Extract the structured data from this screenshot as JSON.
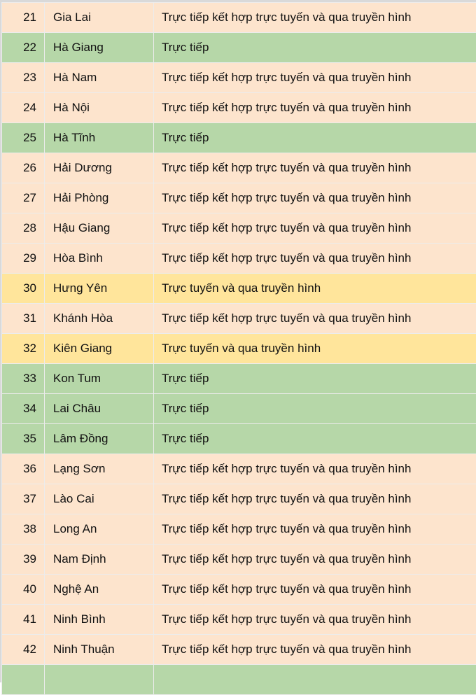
{
  "colors": {
    "peach": "#fde4cd",
    "green": "#b6d7a8",
    "yellow": "#ffe59b"
  },
  "rows": [
    {
      "no": "21",
      "province": "Gia Lai",
      "form": "Trực tiếp kết hợp trực tuyến và qua truyền hình",
      "color": "peach"
    },
    {
      "no": "22",
      "province": "Hà Giang",
      "form": "Trực tiếp",
      "color": "green"
    },
    {
      "no": "23",
      "province": "Hà Nam",
      "form": "Trực tiếp kết hợp trực tuyến và qua truyền hình",
      "color": "peach"
    },
    {
      "no": "24",
      "province": "Hà Nội",
      "form": "Trực tiếp kết hợp trực tuyến và qua truyền hình",
      "color": "peach"
    },
    {
      "no": "25",
      "province": "Hà Tĩnh",
      "form": "Trực tiếp",
      "color": "green"
    },
    {
      "no": "26",
      "province": "Hải Dương",
      "form": "Trực tiếp kết hợp trực tuyến và qua truyền hình",
      "color": "peach"
    },
    {
      "no": "27",
      "province": "Hải Phòng",
      "form": "Trực tiếp kết hợp trực tuyến và qua truyền hình",
      "color": "peach"
    },
    {
      "no": "28",
      "province": "Hậu Giang",
      "form": "Trực tiếp kết hợp trực tuyến và qua truyền hình",
      "color": "peach"
    },
    {
      "no": "29",
      "province": "Hòa Bình",
      "form": "Trực tiếp kết hợp trực tuyến và qua truyền hình",
      "color": "peach"
    },
    {
      "no": "30",
      "province": "Hưng Yên",
      "form": "Trực tuyến và qua truyền hình",
      "color": "yellow"
    },
    {
      "no": "31",
      "province": "Khánh Hòa",
      "form": "Trực tiếp kết hợp trực tuyến và qua truyền hình",
      "color": "peach"
    },
    {
      "no": "32",
      "province": "Kiên Giang",
      "form": "Trực tuyến và qua truyền hình",
      "color": "yellow"
    },
    {
      "no": "33",
      "province": "Kon Tum",
      "form": "Trực tiếp",
      "color": "green"
    },
    {
      "no": "34",
      "province": "Lai Châu",
      "form": "Trực tiếp",
      "color": "green"
    },
    {
      "no": "35",
      "province": "Lâm Đồng",
      "form": "Trực tiếp",
      "color": "green"
    },
    {
      "no": "36",
      "province": "Lạng Sơn",
      "form": "Trực tiếp kết hợp trực tuyến và qua truyền hình",
      "color": "peach"
    },
    {
      "no": "37",
      "province": "Lào Cai",
      "form": "Trực tiếp kết hợp trực tuyến và qua truyền hình",
      "color": "peach"
    },
    {
      "no": "38",
      "province": "Long An",
      "form": "Trực tiếp kết hợp trực tuyến và qua truyền hình",
      "color": "peach"
    },
    {
      "no": "39",
      "province": "Nam Định",
      "form": "Trực tiếp kết hợp trực tuyến và qua truyền hình",
      "color": "peach"
    },
    {
      "no": "40",
      "province": "Nghệ An",
      "form": "Trực tiếp kết hợp trực tuyến và qua truyền hình",
      "color": "peach"
    },
    {
      "no": "41",
      "province": "Ninh Bình",
      "form": "Trực tiếp kết hợp trực tuyến và qua truyền hình",
      "color": "peach"
    },
    {
      "no": "42",
      "province": "Ninh Thuận",
      "form": "Trực tiếp kết hợp trực tuyến và qua truyền hình",
      "color": "peach"
    }
  ]
}
